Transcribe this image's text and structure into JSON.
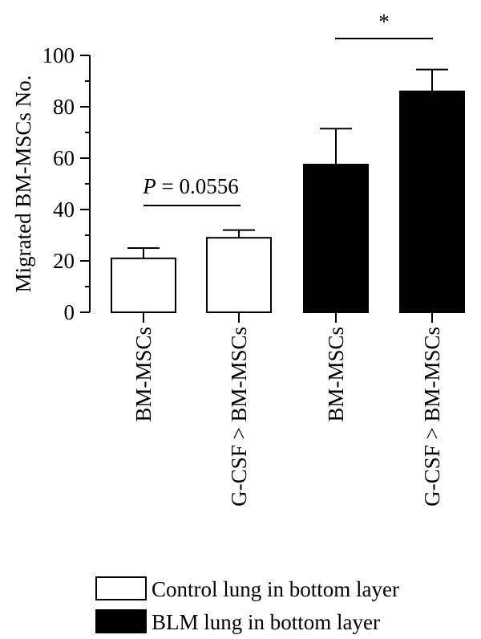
{
  "chart_data": {
    "type": "bar",
    "ylabel": "Migrated BM-MSCs No.",
    "ylim": [
      0,
      100
    ],
    "yticks": [
      0,
      20,
      40,
      60,
      80,
      100
    ],
    "ytick_labels": [
      "0",
      "20",
      "40",
      "60",
      "80",
      "100"
    ],
    "categories": [
      "BM-MSCs",
      "G-CSF > BM-MSCs",
      "BM-MSCs",
      "G-CSF > BM-MSCs"
    ],
    "values": [
      21,
      29,
      57.5,
      86
    ],
    "errors": [
      4,
      3,
      14,
      8.5
    ],
    "groups": [
      "Control lung in bottom layer",
      "Control lung in bottom layer",
      "BLM lung in bottom layer",
      "BLM lung in bottom layer"
    ],
    "legend": {
      "position": "bottom",
      "items": [
        {
          "label": "Control lung in bottom layer",
          "color": "#ffffff"
        },
        {
          "label": "BLM lung in bottom layer",
          "color": "#000000"
        }
      ]
    },
    "annotations": [
      {
        "text_italic": "P",
        "text": "= 0.0556",
        "between": [
          0,
          1
        ]
      },
      {
        "text": "*",
        "between": [
          2,
          3
        ]
      }
    ]
  }
}
